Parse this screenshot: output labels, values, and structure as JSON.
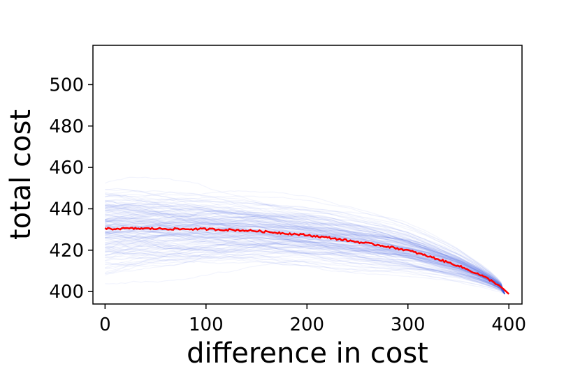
{
  "chart_data": {
    "type": "line",
    "title": "",
    "xlabel": "difference in cost",
    "ylabel": "total cost",
    "xlim": [
      -12,
      413
    ],
    "ylim": [
      394,
      519
    ],
    "xticks": [
      0,
      100,
      200,
      300,
      400
    ],
    "yticks": [
      400,
      420,
      440,
      460,
      480,
      500
    ],
    "grid": false,
    "legend": "none",
    "colors": {
      "simulations": "#4169e1",
      "mean": "#ff0000"
    },
    "series": [
      {
        "role": "mean",
        "x": [
          0,
          25,
          50,
          75,
          100,
          125,
          150,
          175,
          200,
          225,
          250,
          275,
          300,
          325,
          350,
          370,
          380,
          390,
          395,
          400
        ],
        "y": [
          430.3,
          430.5,
          430.4,
          430.2,
          430.2,
          429.8,
          429.3,
          428.3,
          427.3,
          425.8,
          424.0,
          422.2,
          419.9,
          416.4,
          412.5,
          408.4,
          406.0,
          403.1,
          401.1,
          398.8
        ]
      }
    ]
  }
}
